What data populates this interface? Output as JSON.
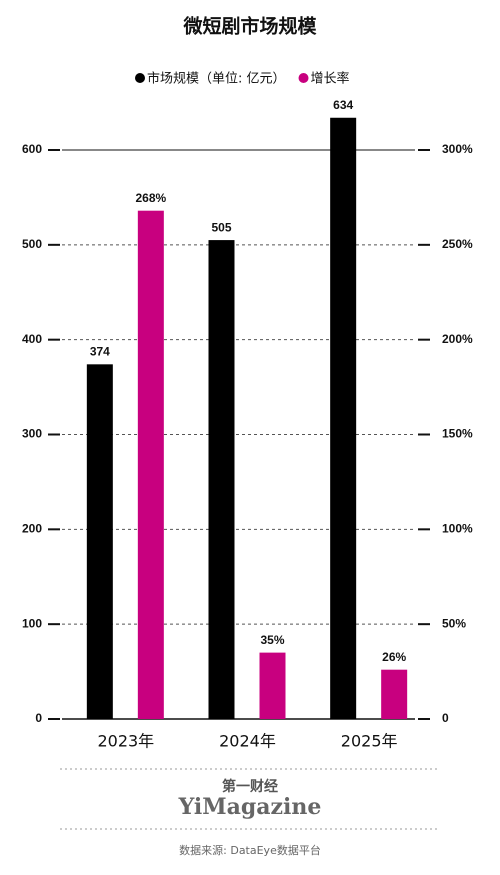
{
  "chart_data": {
    "type": "bar",
    "title": "微短剧市场规模",
    "categories": [
      "2023年",
      "2024年",
      "2025年"
    ],
    "series": [
      {
        "name": "市场规模（单位: 亿元）",
        "color": "#000000",
        "values": [
          374,
          505,
          634
        ]
      },
      {
        "name": "增长率",
        "color": "#c8007f",
        "values": [
          268,
          35,
          26
        ],
        "value_labels": [
          "268%",
          "35%",
          "26%"
        ],
        "axis": "y2"
      }
    ],
    "ylim": [
      0,
      600
    ],
    "yticks": [
      0,
      100,
      200,
      300,
      400,
      500,
      600
    ],
    "y2lim": [
      0,
      300
    ],
    "y2ticks": [
      0,
      {
        "value": 50,
        "label": "50%"
      },
      {
        "value": 100,
        "label": "100%"
      },
      {
        "value": 150,
        "label": "150%"
      },
      {
        "value": 200,
        "label": "200%"
      },
      {
        "value": 250,
        "label": "250%"
      },
      {
        "value": 300,
        "label": "300%"
      }
    ],
    "grid": true,
    "legend": "top"
  },
  "footer": {
    "brand_cn": "第一财经",
    "brand_en": "YiMagazine",
    "source": "数据来源: DataEye数据平台"
  }
}
